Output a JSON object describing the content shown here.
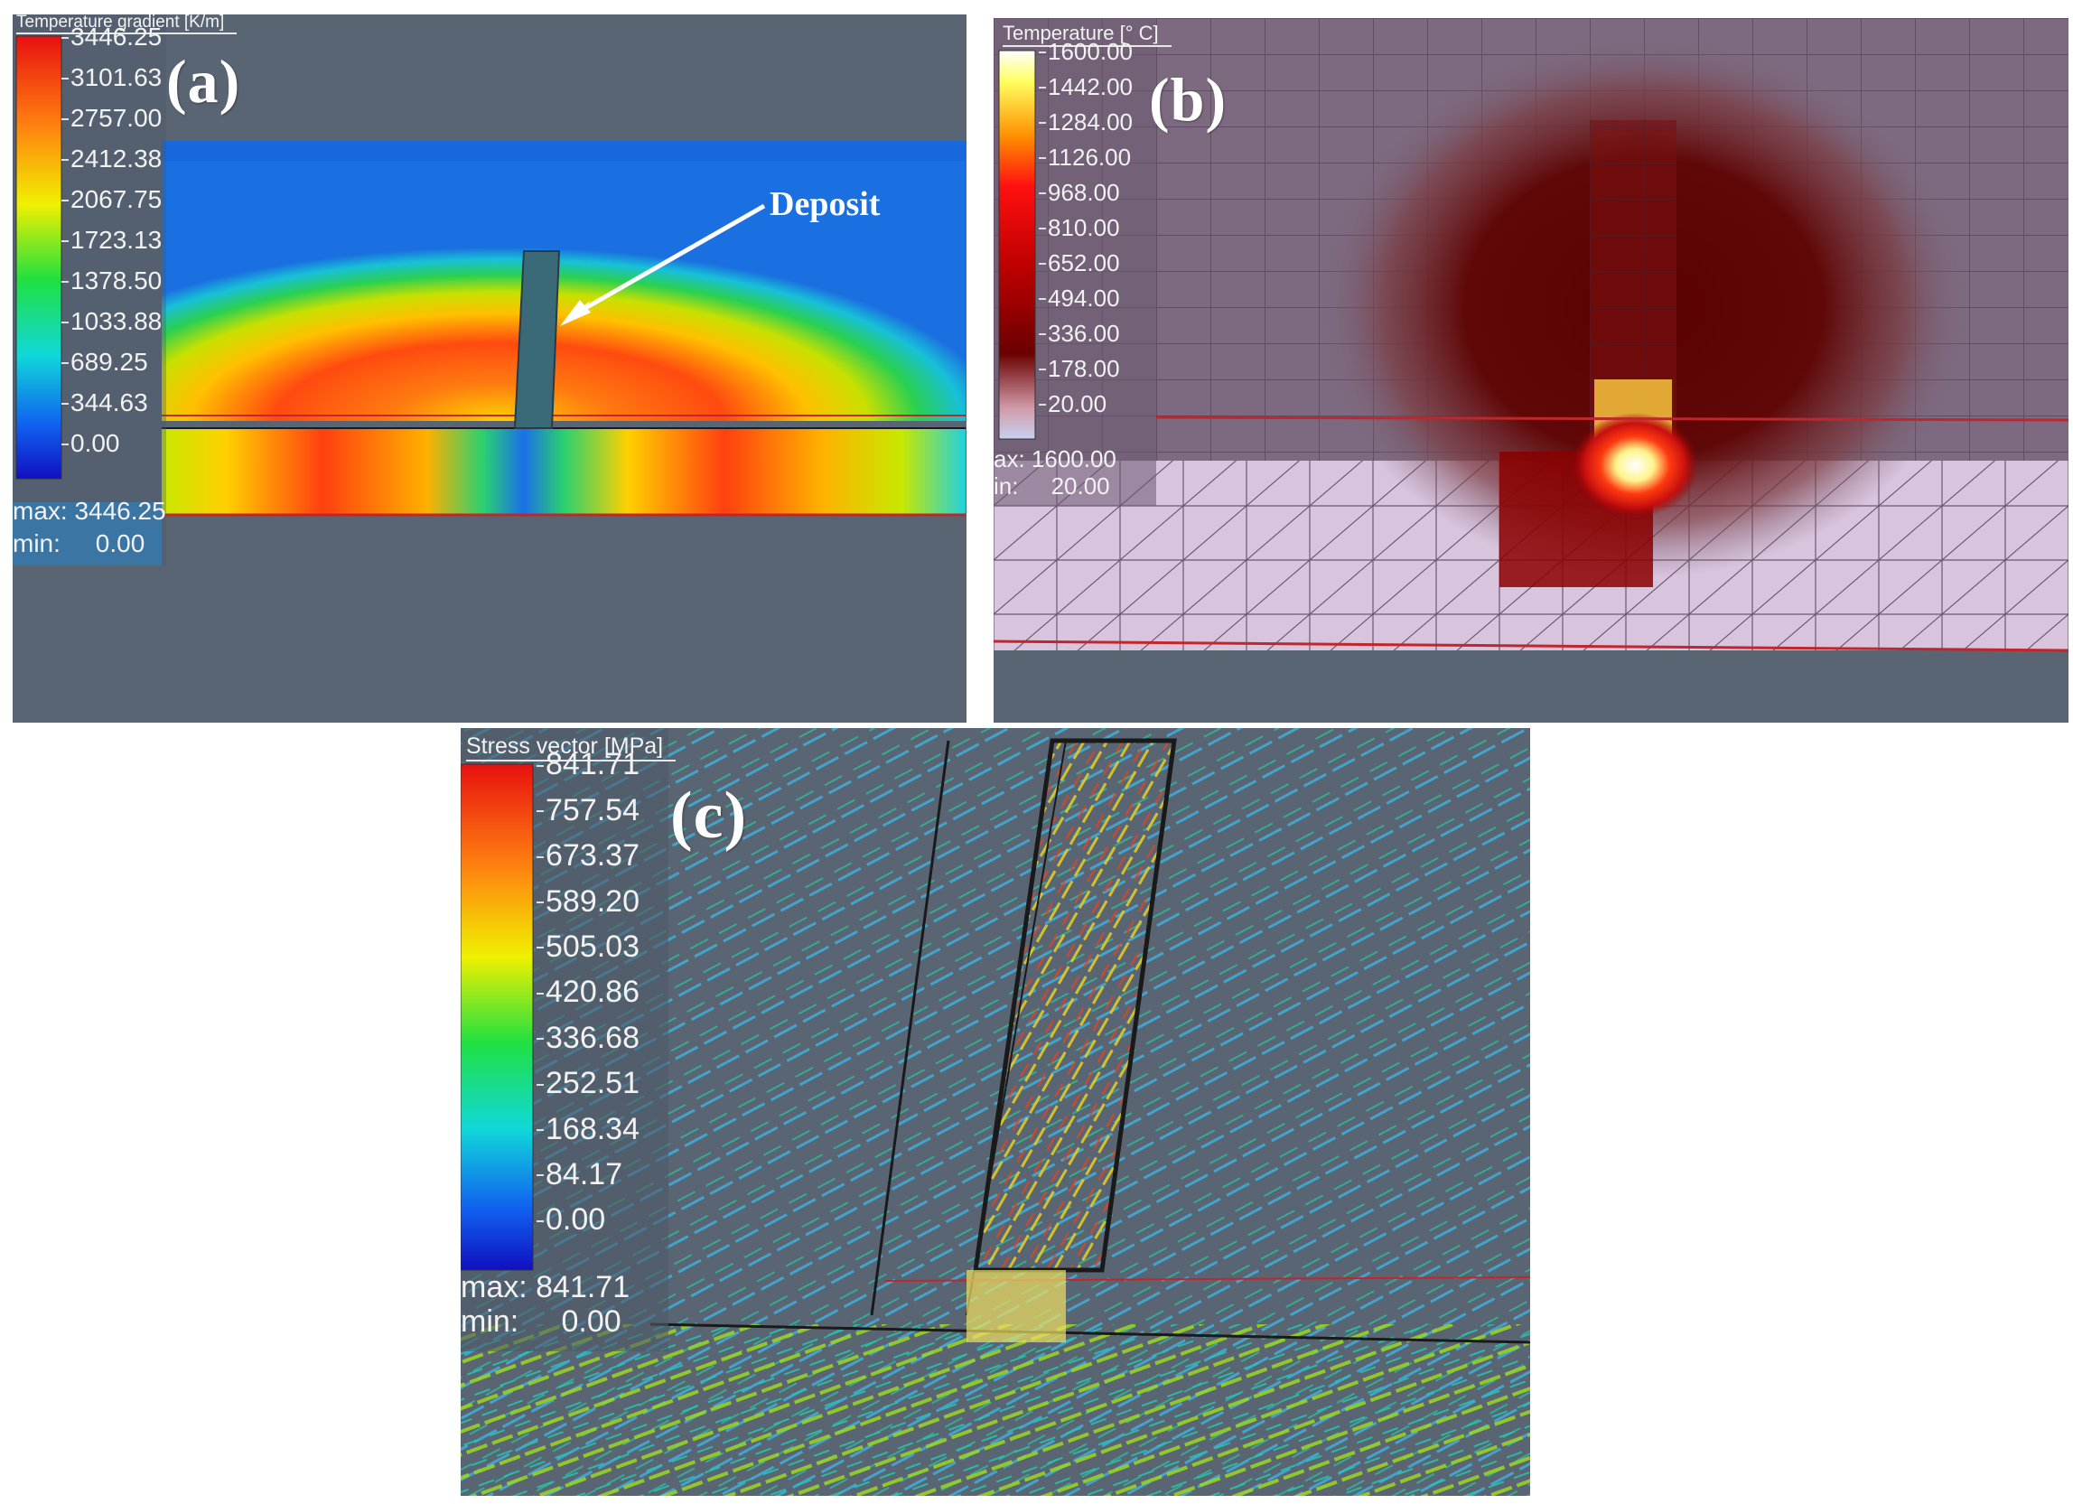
{
  "panels": {
    "a": {
      "letter": "(a)",
      "legend_title": "Temperature gradient [K/m]",
      "ticks": [
        "3446.25",
        "3101.63",
        "2757.00",
        "2412.38",
        "2067.75",
        "1723.13",
        "1378.50",
        "1033.88",
        "689.25",
        "344.63",
        "0.00"
      ],
      "max_text": "max: 3446.25",
      "min_text": "min:     0.00",
      "annotation": "Deposit"
    },
    "b": {
      "letter": "(b)",
      "legend_title": "Temperature [° C]",
      "ticks": [
        "1600.00",
        "1442.00",
        "1284.00",
        "1126.00",
        "968.00",
        "810.00",
        "652.00",
        "494.00",
        "336.00",
        "178.00",
        "20.00"
      ],
      "max_text": "ax: 1600.00",
      "min_text": "in:     20.00"
    },
    "c": {
      "letter": "(c)",
      "legend_title": "Stress vector [MPa]",
      "ticks": [
        "841.71",
        "757.54",
        "673.37",
        "589.20",
        "505.03",
        "420.86",
        "336.68",
        "252.51",
        "168.34",
        "84.17",
        "0.00"
      ],
      "max_text": "max: 841.71",
      "min_text": "min:     0.00"
    }
  },
  "colors": {
    "viewport_bg": "#5a6573",
    "panel_b_bg": "#7d6a80",
    "panel_b_substrate": "#d9c4dd",
    "red_line": "#c0262c"
  }
}
